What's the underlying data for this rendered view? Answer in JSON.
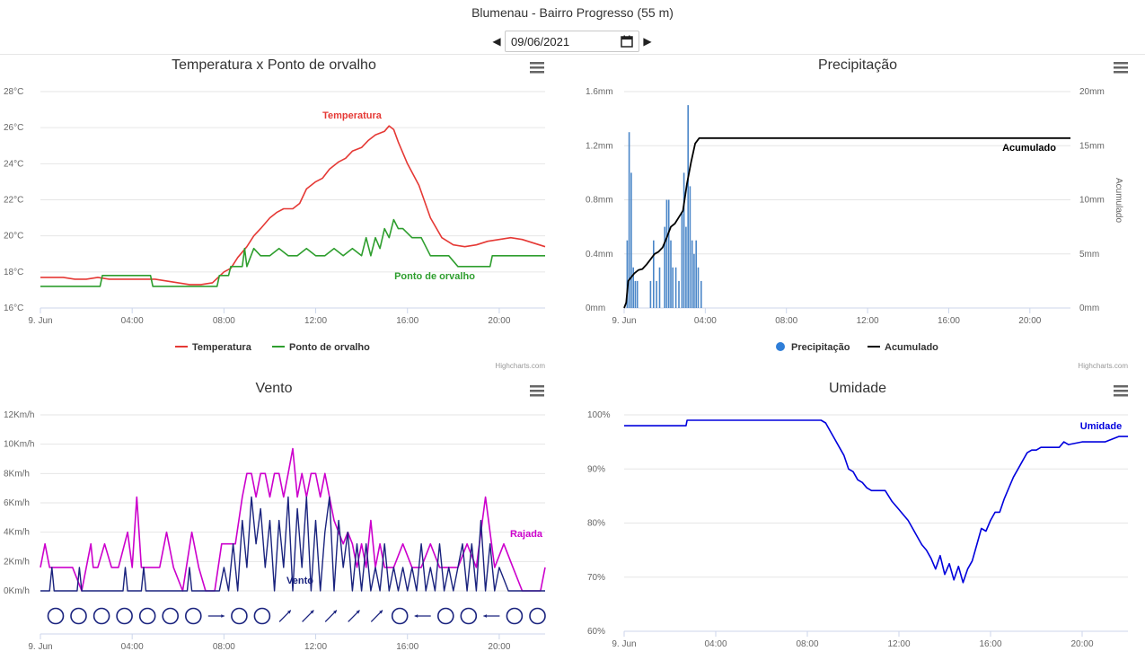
{
  "header": {
    "title": "Blumenau - Bairro Progresso (55 m)",
    "date_value": "09/06/2021"
  },
  "credits": "Highcharts.com",
  "colors": {
    "temperature": "#e53935",
    "dewpoint": "#2e9e2e",
    "precip": "#4a86c8",
    "accum": "#000000",
    "gust": "#cc00cc",
    "wind": "#1a237e",
    "humidity": "#0000dd"
  },
  "chart_data": [
    {
      "id": "temp",
      "type": "line",
      "title": "Temperatura x Ponto de orvalho",
      "x_ticks": [
        "9. Jun",
        "04:00",
        "08:00",
        "12:00",
        "16:00",
        "20:00"
      ],
      "x_range_hours": [
        0,
        22
      ],
      "y_ticks": [
        "16°C",
        "18°C",
        "20°C",
        "22°C",
        "24°C",
        "26°C",
        "28°C"
      ],
      "y_range": [
        16,
        28
      ],
      "legend": [
        "Temperatura",
        "Ponto de orvalho"
      ],
      "series": [
        {
          "name": "Temperatura",
          "label": "Temperatura",
          "x": [
            0,
            0.5,
            1,
            1.5,
            2,
            2.5,
            3,
            3.5,
            4,
            4.5,
            5,
            5.5,
            6,
            6.5,
            7,
            7.5,
            8,
            8.3,
            8.6,
            9,
            9.3,
            9.6,
            10,
            10.3,
            10.6,
            11,
            11.3,
            11.6,
            12,
            12.3,
            12.6,
            13,
            13.3,
            13.6,
            14,
            14.3,
            14.6,
            15,
            15.2,
            15.4,
            15.6,
            16,
            16.5,
            17,
            17.5,
            18,
            18.5,
            19,
            19.5,
            20,
            20.5,
            21,
            21.5,
            22
          ],
          "y": [
            17.7,
            17.7,
            17.7,
            17.6,
            17.6,
            17.7,
            17.6,
            17.6,
            17.6,
            17.6,
            17.6,
            17.5,
            17.4,
            17.3,
            17.3,
            17.4,
            18.0,
            18.2,
            18.8,
            19.4,
            20.0,
            20.4,
            21.0,
            21.3,
            21.5,
            21.5,
            21.8,
            22.6,
            23.0,
            23.2,
            23.7,
            24.1,
            24.3,
            24.7,
            24.9,
            25.3,
            25.6,
            25.8,
            26.1,
            25.9,
            25.2,
            24.0,
            22.8,
            21.0,
            19.9,
            19.5,
            19.4,
            19.5,
            19.7,
            19.8,
            19.9,
            19.8,
            19.6,
            19.4
          ]
        },
        {
          "name": "Ponto de orvalho",
          "label": "Ponto de orvalho",
          "x": [
            0,
            2.6,
            2.7,
            4.8,
            4.9,
            7.7,
            7.8,
            8.2,
            8.3,
            8.8,
            8.9,
            9.0,
            9.3,
            9.6,
            10,
            10.4,
            10.8,
            11.2,
            11.6,
            12,
            12.4,
            12.8,
            13.2,
            13.6,
            14,
            14.2,
            14.4,
            14.6,
            14.8,
            15,
            15.2,
            15.4,
            15.6,
            15.8,
            16.2,
            16.6,
            17,
            17.4,
            17.8,
            18.2,
            18.6,
            18.8,
            19.6,
            19.7,
            22
          ],
          "y": [
            17.2,
            17.2,
            17.8,
            17.8,
            17.2,
            17.2,
            17.8,
            17.8,
            18.3,
            18.3,
            19.3,
            18.3,
            19.3,
            18.9,
            18.9,
            19.3,
            18.9,
            18.9,
            19.3,
            18.9,
            18.9,
            19.3,
            18.9,
            19.3,
            18.9,
            19.9,
            18.9,
            19.9,
            19.3,
            20.4,
            19.9,
            20.9,
            20.4,
            20.4,
            19.9,
            19.9,
            18.9,
            18.9,
            18.9,
            18.3,
            18.3,
            18.3,
            18.3,
            18.9,
            18.9
          ]
        }
      ]
    },
    {
      "id": "precip",
      "type": "bar",
      "title": "Precipitação",
      "x_ticks": [
        "9. Jun",
        "04:00",
        "08:00",
        "12:00",
        "16:00",
        "20:00"
      ],
      "x_range_hours": [
        0,
        22
      ],
      "y_ticks": [
        "0mm",
        "0.4mm",
        "0.8mm",
        "1.2mm",
        "1.6mm"
      ],
      "y_range": [
        0,
        1.6
      ],
      "y2_ticks": [
        "0mm",
        "5mm",
        "10mm",
        "15mm",
        "20mm"
      ],
      "y2_range": [
        0,
        20
      ],
      "y2_label": "Acumulado",
      "legend": [
        "Precipitação",
        "Acumulado"
      ],
      "bars": {
        "name": "Precipitação",
        "x": [
          0.15,
          0.25,
          0.35,
          0.45,
          0.55,
          0.65,
          1.3,
          1.45,
          1.6,
          1.75,
          2.0,
          2.1,
          2.2,
          2.3,
          2.4,
          2.55,
          2.7,
          2.85,
          2.95,
          3.05,
          3.15,
          3.25,
          3.35,
          3.45,
          3.55,
          3.65,
          3.8
        ],
        "y": [
          0.5,
          1.3,
          1.0,
          0.3,
          0.2,
          0.2,
          0.2,
          0.5,
          0.2,
          0.3,
          0.6,
          0.8,
          0.8,
          0.5,
          0.3,
          0.3,
          0.2,
          0.7,
          1.0,
          0.6,
          1.5,
          0.9,
          0.5,
          0.4,
          0.5,
          0.3,
          0.2
        ]
      },
      "line": {
        "name": "Acumulado",
        "label": "Acumulado",
        "x": [
          0,
          0.1,
          0.2,
          0.5,
          0.7,
          0.9,
          1.1,
          1.3,
          1.5,
          1.7,
          1.9,
          2.1,
          2.3,
          2.5,
          2.7,
          2.9,
          3.1,
          3.3,
          3.5,
          3.7,
          4.0,
          22
        ],
        "y": [
          0,
          0.5,
          2.5,
          3.2,
          3.5,
          3.6,
          4.0,
          4.5,
          5.0,
          5.2,
          5.6,
          6.5,
          7.5,
          7.8,
          8.4,
          9.0,
          11.5,
          13.5,
          15.2,
          15.7,
          15.7,
          15.7
        ]
      }
    },
    {
      "id": "wind",
      "type": "line",
      "title": "Vento",
      "x_ticks": [
        "9. Jun",
        "04:00",
        "08:00",
        "12:00",
        "16:00",
        "20:00"
      ],
      "x_range_hours": [
        0,
        22
      ],
      "y_ticks": [
        "0Km/h",
        "2Km/h",
        "4Km/h",
        "6Km/h",
        "8Km/h",
        "10Km/h",
        "12Km/h"
      ],
      "y_range": [
        0,
        12
      ],
      "direction_markers": [
        "calm",
        "calm",
        "calm",
        "calm",
        "calm",
        "calm",
        "calm",
        "W",
        "calm",
        "calm",
        "SW",
        "SW",
        "SW",
        "SW",
        "SW",
        "calm",
        "E",
        "calm",
        "calm",
        "E",
        "calm",
        "calm"
      ],
      "series": [
        {
          "name": "Rajada",
          "label": "Rajada",
          "x": [
            0,
            0.2,
            0.4,
            0.6,
            0.8,
            1.0,
            1.4,
            1.8,
            2.2,
            2.3,
            2.5,
            2.8,
            3.1,
            3.4,
            3.8,
            4.0,
            4.2,
            4.4,
            4.6,
            4.8,
            5.2,
            5.5,
            5.8,
            6.2,
            6.6,
            6.9,
            7.2,
            7.6,
            7.9,
            8.2,
            8.5,
            8.8,
            9.0,
            9.2,
            9.4,
            9.6,
            9.8,
            10.0,
            10.2,
            10.4,
            10.6,
            10.8,
            11.0,
            11.2,
            11.4,
            11.6,
            11.8,
            12.0,
            12.2,
            12.4,
            12.6,
            12.8,
            13.0,
            13.2,
            13.4,
            13.6,
            13.8,
            14.0,
            14.2,
            14.4,
            14.6,
            14.8,
            15.0,
            15.4,
            15.8,
            16.2,
            16.6,
            17.0,
            17.4,
            17.8,
            18.2,
            18.6,
            19.0,
            19.4,
            19.6,
            19.8,
            20.2,
            20.6,
            21.0,
            21.4,
            21.8,
            22
          ],
          "y": [
            1.6,
            3.2,
            1.6,
            1.6,
            1.6,
            1.6,
            1.6,
            0,
            3.2,
            1.6,
            1.6,
            3.2,
            1.6,
            1.6,
            4.0,
            1.6,
            6.4,
            1.6,
            1.6,
            1.6,
            1.6,
            4.0,
            1.6,
            0,
            4.0,
            1.6,
            0,
            0,
            3.2,
            3.2,
            3.2,
            6.4,
            8.0,
            8.0,
            6.4,
            8.0,
            8.0,
            6.4,
            8.0,
            8.0,
            6.4,
            8.0,
            9.7,
            6.4,
            8.0,
            6.4,
            8.0,
            8.0,
            6.4,
            8.0,
            6.4,
            4.8,
            4.0,
            3.2,
            4.0,
            3.2,
            1.6,
            3.2,
            1.6,
            4.8,
            1.6,
            3.2,
            1.6,
            1.6,
            3.2,
            1.6,
            1.6,
            3.2,
            1.6,
            1.6,
            1.6,
            3.2,
            1.6,
            6.4,
            4.0,
            1.6,
            3.2,
            1.6,
            0,
            0,
            0,
            1.6
          ]
        },
        {
          "name": "Vento",
          "label": "Vento",
          "x": [
            0,
            0.4,
            0.5,
            0.6,
            1.0,
            1.6,
            1.7,
            1.8,
            2.2,
            3.6,
            3.7,
            3.8,
            4.2,
            4.4,
            4.5,
            4.6,
            5.0,
            6.4,
            6.5,
            6.6,
            7.0,
            7.8,
            8.0,
            8.2,
            8.4,
            8.6,
            8.8,
            9.0,
            9.2,
            9.4,
            9.6,
            9.8,
            10.0,
            10.2,
            10.4,
            10.6,
            10.8,
            11.0,
            11.2,
            11.4,
            11.6,
            11.8,
            12.0,
            12.2,
            12.4,
            12.6,
            12.8,
            13.0,
            13.2,
            13.4,
            13.6,
            13.8,
            14.0,
            14.2,
            14.4,
            14.6,
            14.8,
            15.0,
            15.2,
            15.4,
            15.6,
            15.8,
            16.0,
            16.2,
            16.4,
            16.6,
            16.8,
            17.0,
            17.2,
            17.4,
            17.6,
            17.8,
            18.0,
            18.2,
            18.4,
            18.6,
            18.8,
            19.0,
            19.2,
            19.4,
            19.6,
            19.8,
            20.0,
            20.4,
            21.0,
            22
          ],
          "y": [
            0,
            0,
            1.6,
            0,
            0,
            0,
            1.6,
            0,
            0,
            0,
            1.6,
            0,
            0,
            0,
            1.6,
            0,
            0,
            0,
            1.6,
            0,
            0,
            0,
            1.6,
            0,
            3.2,
            0,
            4.8,
            1.6,
            6.4,
            3.2,
            5.6,
            1.6,
            4.8,
            0,
            4.8,
            1.6,
            6.4,
            0,
            5.6,
            1.6,
            6.4,
            0,
            4.8,
            0,
            4.0,
            6.4,
            0,
            4.8,
            1.6,
            4.0,
            0,
            3.2,
            0,
            3.2,
            0,
            1.6,
            0,
            3.2,
            0,
            1.6,
            0,
            1.6,
            0,
            1.6,
            0,
            3.2,
            0,
            1.6,
            0,
            3.2,
            0,
            1.6,
            0,
            1.6,
            3.2,
            0,
            3.2,
            0,
            4.8,
            0,
            3.2,
            0,
            1.6,
            0,
            0,
            0
          ]
        }
      ]
    },
    {
      "id": "humidity",
      "type": "line",
      "title": "Umidade",
      "x_ticks": [
        "9. Jun",
        "04:00",
        "08:00",
        "12:00",
        "16:00",
        "20:00"
      ],
      "x_range_hours": [
        0,
        22
      ],
      "y_ticks": [
        "60%",
        "70%",
        "80%",
        "90%",
        "100%"
      ],
      "y_range": [
        60,
        100
      ],
      "series": [
        {
          "name": "Umidade",
          "label": "Umidade",
          "x": [
            0,
            2.7,
            2.75,
            8.6,
            8.8,
            9.0,
            9.2,
            9.4,
            9.6,
            9.8,
            10.0,
            10.2,
            10.4,
            10.6,
            10.8,
            11.0,
            11.4,
            11.7,
            12.0,
            12.2,
            12.4,
            12.6,
            12.8,
            13.0,
            13.2,
            13.4,
            13.6,
            13.8,
            14.0,
            14.2,
            14.4,
            14.6,
            14.8,
            15.0,
            15.2,
            15.4,
            15.6,
            15.8,
            16.0,
            16.2,
            16.4,
            16.6,
            16.8,
            17.0,
            17.2,
            17.4,
            17.6,
            17.8,
            18.0,
            18.2,
            18.4,
            18.6,
            18.8,
            19.0,
            19.2,
            19.4,
            20.0,
            21.0,
            21.6,
            22
          ],
          "y": [
            98,
            98,
            99,
            99,
            98.5,
            97,
            95.5,
            94,
            92.5,
            90,
            89.5,
            88,
            87.5,
            86.5,
            86,
            86,
            86,
            84,
            82.5,
            81.5,
            80.5,
            79,
            77.5,
            76,
            75,
            73.5,
            71.5,
            74,
            70.5,
            72.5,
            69.5,
            72,
            69,
            71.5,
            73,
            76,
            79,
            78.5,
            80.5,
            82,
            82,
            84.5,
            86.5,
            88.5,
            90,
            91.5,
            93,
            93.5,
            93.5,
            94,
            94,
            94,
            94,
            94,
            95,
            94.5,
            95,
            95,
            96,
            96
          ]
        }
      ]
    }
  ]
}
